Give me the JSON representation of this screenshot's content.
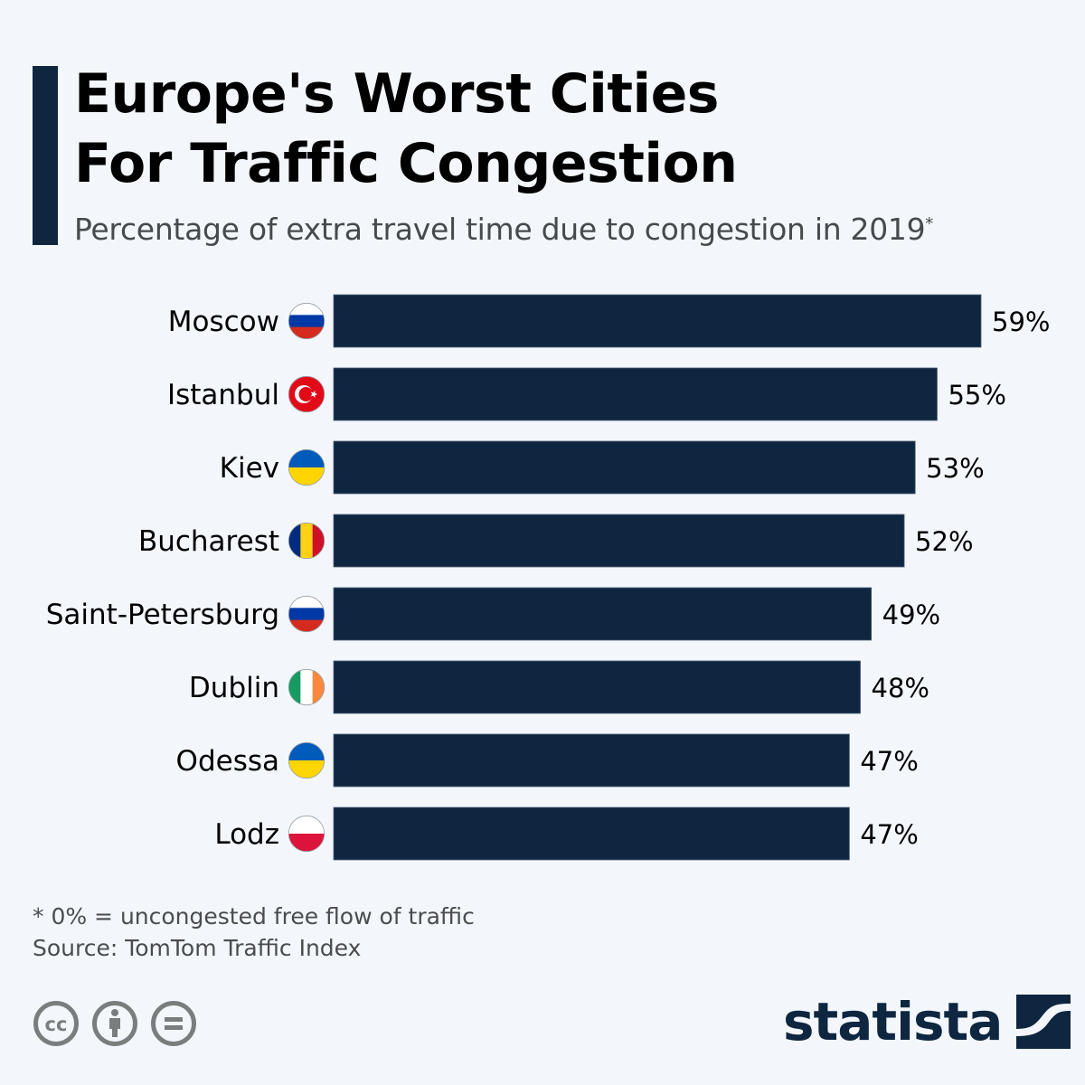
{
  "header": {
    "title_line1": "Europe's Worst Cities",
    "title_line2": "For Traffic Congestion",
    "subtitle": "Percentage of extra travel time due to congestion in 2019",
    "subtitle_marker": "*"
  },
  "colors": {
    "bar": "#0f2640",
    "accent": "#0f2640",
    "background": "#f3f7fb",
    "logo": "#0f2640"
  },
  "chart_data": {
    "type": "bar",
    "orientation": "horizontal",
    "title": "Europe's Worst Cities For Traffic Congestion",
    "subtitle": "Percentage of extra travel time due to congestion in 2019*",
    "xlabel": "",
    "ylabel": "",
    "categories": [
      "Moscow",
      "Istanbul",
      "Kiev",
      "Bucharest",
      "Saint-Petersburg",
      "Dublin",
      "Odessa",
      "Lodz"
    ],
    "values": [
      59,
      55,
      53,
      52,
      49,
      48,
      47,
      47
    ],
    "value_labels": [
      "59%",
      "55%",
      "53%",
      "52%",
      "49%",
      "48%",
      "47%",
      "47%"
    ],
    "flags": [
      "russia-flag",
      "turkey-flag",
      "ukraine-flag",
      "romania-flag",
      "russia-flag",
      "ireland-flag",
      "ukraine-flag",
      "poland-flag"
    ],
    "unit": "%",
    "xlim": [
      0,
      59
    ],
    "grid": false,
    "legend": "none"
  },
  "footer": {
    "note": "* 0% = uncongested free flow of traffic",
    "source": "Source: TomTom Traffic Index",
    "license_icons": [
      "creative-commons-icon",
      "attribution-icon",
      "no-derivatives-icon"
    ],
    "logo_text": "statista"
  }
}
